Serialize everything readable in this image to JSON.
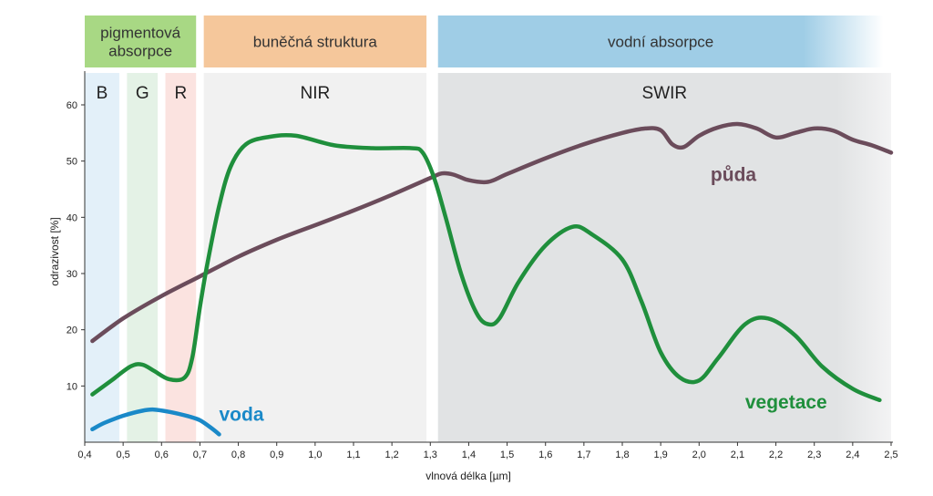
{
  "headers": [
    {
      "label_lines": [
        "pigmentová",
        "absorpce"
      ],
      "x_from": 0.4,
      "x_to": 0.69,
      "color": "#a8d884"
    },
    {
      "label_lines": [
        "buněčná struktura"
      ],
      "x_from": 0.71,
      "x_to": 1.29,
      "color": "#f5c79b"
    },
    {
      "label_lines": [
        "vodní absorpce"
      ],
      "x_from": 1.32,
      "x_to": 2.48,
      "color": "#9fcde6"
    }
  ],
  "bands": [
    {
      "label": "B",
      "x_from": 0.4,
      "x_to": 0.49,
      "color": "#e3f0f9"
    },
    {
      "label": "G",
      "x_from": 0.51,
      "x_to": 0.59,
      "color": "#e4f2e6"
    },
    {
      "label": "R",
      "x_from": 0.61,
      "x_to": 0.69,
      "color": "#fbe3e0"
    },
    {
      "label": "NIR",
      "x_from": 0.71,
      "x_to": 1.29,
      "color": "#f1f1f1"
    },
    {
      "label": "SWIR",
      "x_from": 1.32,
      "x_to": 2.5,
      "color": "#e1e3e4"
    }
  ],
  "chart_data": {
    "type": "line",
    "xlabel": "vlnová délka [µm]",
    "ylabel": "odrazivost [%]",
    "xlim": [
      0.4,
      2.5
    ],
    "ylim": [
      0,
      65
    ],
    "x_ticks": [
      "0,4",
      "0,5",
      "0,6",
      "0,7",
      "0,8",
      "0,9",
      "1,0",
      "1,1",
      "1,2",
      "1,3",
      "1,4",
      "1,5",
      "1,6",
      "1,7",
      "1,8",
      "1,9",
      "2,0",
      "2,1",
      "2,2",
      "2,3",
      "2,4",
      "2,5"
    ],
    "y_ticks": [
      "10",
      "20",
      "30",
      "40",
      "50",
      "60"
    ],
    "grid": false,
    "series": [
      {
        "name": "půda",
        "color": "#6b4c5b",
        "label_at": [
          2.03,
          46.5
        ],
        "points": [
          [
            0.42,
            18
          ],
          [
            0.5,
            22
          ],
          [
            0.6,
            26
          ],
          [
            0.7,
            29.5
          ],
          [
            0.8,
            33
          ],
          [
            0.9,
            36
          ],
          [
            1.0,
            38.6
          ],
          [
            1.1,
            41.2
          ],
          [
            1.2,
            44
          ],
          [
            1.3,
            47
          ],
          [
            1.33,
            47.8
          ],
          [
            1.36,
            47.6
          ],
          [
            1.4,
            46.6
          ],
          [
            1.45,
            46.3
          ],
          [
            1.5,
            47.7
          ],
          [
            1.6,
            50.5
          ],
          [
            1.7,
            53
          ],
          [
            1.8,
            55
          ],
          [
            1.86,
            55.8
          ],
          [
            1.9,
            55.5
          ],
          [
            1.93,
            53
          ],
          [
            1.96,
            52.5
          ],
          [
            2.0,
            54.5
          ],
          [
            2.05,
            56
          ],
          [
            2.1,
            56.6
          ],
          [
            2.15,
            55.8
          ],
          [
            2.2,
            54.2
          ],
          [
            2.25,
            55
          ],
          [
            2.3,
            55.8
          ],
          [
            2.35,
            55.4
          ],
          [
            2.4,
            53.8
          ],
          [
            2.45,
            52.8
          ],
          [
            2.5,
            51.5
          ]
        ]
      },
      {
        "name": "vegetace",
        "color": "#1f8f3c",
        "label_at": [
          2.12,
          6
        ],
        "points": [
          [
            0.42,
            8.5
          ],
          [
            0.47,
            11
          ],
          [
            0.52,
            13.5
          ],
          [
            0.55,
            13.8
          ],
          [
            0.58,
            12.7
          ],
          [
            0.62,
            11.2
          ],
          [
            0.66,
            11.5
          ],
          [
            0.68,
            15
          ],
          [
            0.7,
            24
          ],
          [
            0.72,
            32
          ],
          [
            0.75,
            42
          ],
          [
            0.78,
            49
          ],
          [
            0.82,
            53
          ],
          [
            0.88,
            54.3
          ],
          [
            0.95,
            54.5
          ],
          [
            1.05,
            52.8
          ],
          [
            1.15,
            52.3
          ],
          [
            1.25,
            52.3
          ],
          [
            1.28,
            51.5
          ],
          [
            1.31,
            47
          ],
          [
            1.34,
            40
          ],
          [
            1.38,
            30
          ],
          [
            1.42,
            23
          ],
          [
            1.45,
            21
          ],
          [
            1.48,
            22
          ],
          [
            1.53,
            28.5
          ],
          [
            1.6,
            35
          ],
          [
            1.67,
            38.3
          ],
          [
            1.72,
            37
          ],
          [
            1.8,
            32.5
          ],
          [
            1.85,
            25
          ],
          [
            1.9,
            16
          ],
          [
            1.95,
            11.5
          ],
          [
            2.0,
            11
          ],
          [
            2.05,
            15
          ],
          [
            2.12,
            21
          ],
          [
            2.18,
            22
          ],
          [
            2.25,
            19
          ],
          [
            2.32,
            13.5
          ],
          [
            2.4,
            9.5
          ],
          [
            2.47,
            7.5
          ]
        ]
      },
      {
        "name": "voda",
        "color": "#1a89c8",
        "label_at": [
          0.75,
          3.8
        ],
        "points": [
          [
            0.42,
            2.3
          ],
          [
            0.45,
            3.4
          ],
          [
            0.5,
            4.7
          ],
          [
            0.55,
            5.6
          ],
          [
            0.58,
            5.8
          ],
          [
            0.62,
            5.4
          ],
          [
            0.67,
            4.6
          ],
          [
            0.7,
            3.9
          ],
          [
            0.73,
            2.5
          ],
          [
            0.75,
            1.4
          ]
        ]
      }
    ]
  }
}
